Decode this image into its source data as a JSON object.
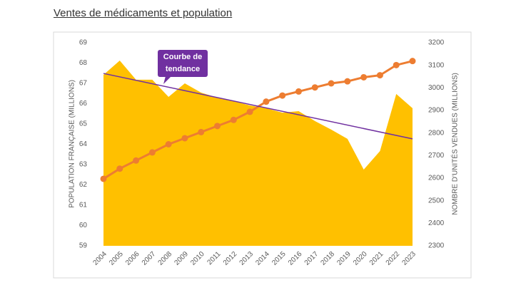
{
  "chart_data": {
    "type": "combo",
    "title": "Ventes de médicaments et population",
    "ylabel": "POPULATION FRANÇAISE (MILLIONS)",
    "y2label": "NOMBRE D'UNITÉS VENDUES (MILLIONS)",
    "categories": [
      "2004",
      "2005",
      "2006",
      "2007",
      "2008",
      "2009",
      "2010",
      "2011",
      "2012",
      "2013",
      "2014",
      "2015",
      "2016",
      "2017",
      "2018",
      "2019",
      "2020",
      "2021",
      "2022",
      "2023"
    ],
    "series": [
      {
        "type": "area",
        "axis": "y2",
        "color": "#ffc000",
        "values": [
          3058,
          3121,
          3036,
          3036,
          2960,
          3020,
          2979,
          2957,
          2941,
          2922,
          2910,
          2890,
          2897,
          2853,
          2815,
          2774,
          2638,
          2720,
          2973,
          2910
        ]
      },
      {
        "type": "line",
        "color": "#ed7d31",
        "values": [
          62.3,
          62.8,
          63.2,
          63.6,
          64.0,
          64.3,
          64.6,
          64.9,
          65.2,
          65.6,
          66.1,
          66.4,
          66.6,
          66.8,
          67.0,
          67.1,
          67.3,
          67.4,
          67.9,
          68.1
        ]
      }
    ],
    "trendline": {
      "label": "Courbe de tendance",
      "color": "#7030a0",
      "axis": "y2",
      "start": 3064,
      "end": 2774
    },
    "ylim": [
      59,
      69
    ],
    "yticks": [
      59,
      60,
      61,
      62,
      63,
      64,
      65,
      66,
      67,
      68,
      69
    ],
    "y2lim": [
      2300,
      3200
    ],
    "y2ticks": [
      2300,
      2400,
      2500,
      2600,
      2700,
      2800,
      2900,
      3000,
      3100,
      3200
    ],
    "grid": false
  }
}
